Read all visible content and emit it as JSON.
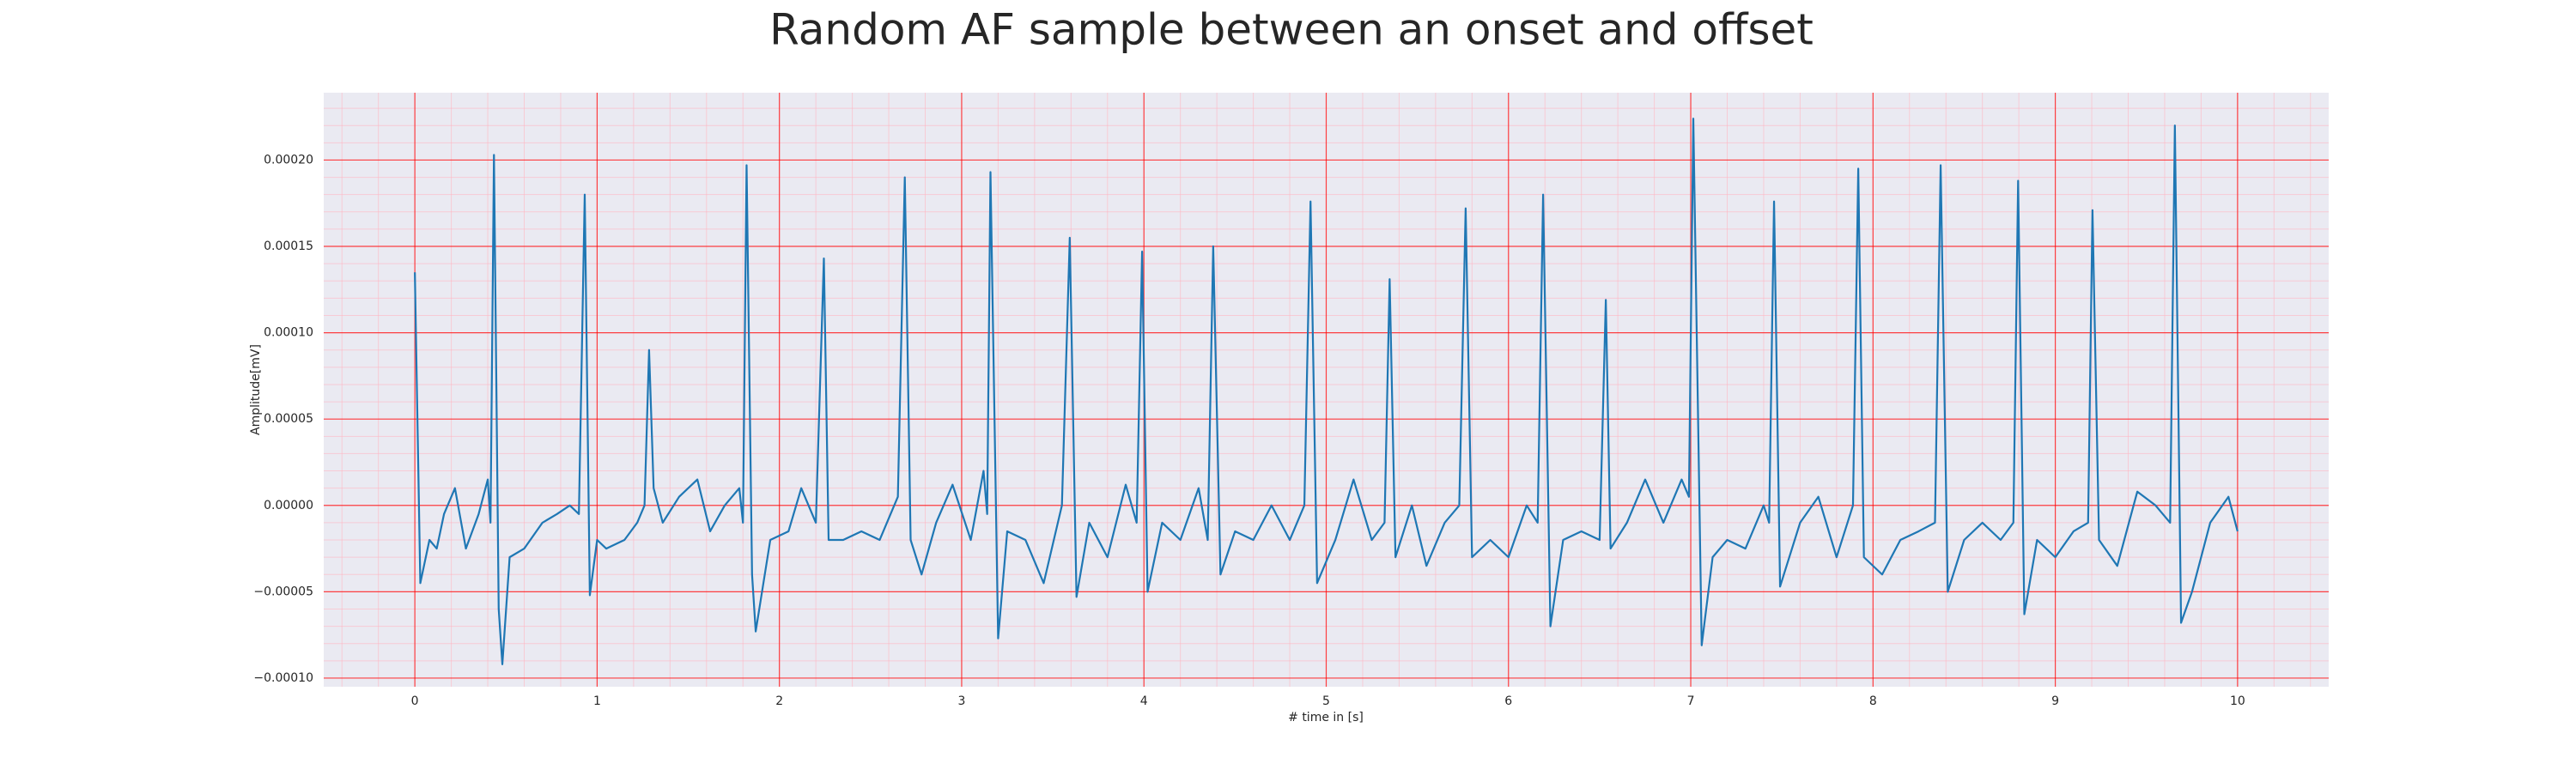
{
  "chart_data": {
    "type": "line",
    "title": "Random AF sample between an onset and offset",
    "x_label": "# time in [s]",
    "y_label": "Amplitude[mV]",
    "color": "#1f77b4",
    "background": "#eaeaf2",
    "grid": true,
    "grid_color": "#ff0000",
    "minor_grid": true,
    "minor_grid_color": "#ffb6c1",
    "xlim": [
      -0.5,
      10.5
    ],
    "ylim": [
      -0.000105,
      0.000239
    ],
    "xticks": [
      0,
      1,
      2,
      3,
      4,
      5,
      6,
      7,
      8,
      9,
      10
    ],
    "yticks": [
      {
        "value": -0.0001,
        "label": "−0.00010"
      },
      {
        "value": -5e-05,
        "label": "−0.00005"
      },
      {
        "value": 0,
        "label": "0.00000"
      },
      {
        "value": 5e-05,
        "label": "0.00005"
      },
      {
        "value": 0.0001,
        "label": "0.00010"
      },
      {
        "value": 0.00015,
        "label": "0.00015"
      },
      {
        "value": 0.0002,
        "label": "0.00020"
      }
    ],
    "x": [
      0,
      0.03,
      0.08,
      0.12,
      0.16,
      0.22,
      0.28,
      0.35,
      0.4,
      0.415,
      0.434,
      0.46,
      0.48,
      0.52,
      0.6,
      0.7,
      0.78,
      0.85,
      0.9,
      0.932,
      0.96,
      1.0,
      1.05,
      1.15,
      1.22,
      1.26,
      1.285,
      1.31,
      1.36,
      1.45,
      1.55,
      1.62,
      1.7,
      1.78,
      1.8,
      1.82,
      1.85,
      1.87,
      1.95,
      2.05,
      2.12,
      2.2,
      2.244,
      2.27,
      2.35,
      2.45,
      2.55,
      2.65,
      2.688,
      2.72,
      2.78,
      2.86,
      2.95,
      3.05,
      3.12,
      3.14,
      3.158,
      3.2,
      3.25,
      3.35,
      3.45,
      3.55,
      3.593,
      3.63,
      3.7,
      3.8,
      3.9,
      3.96,
      3.99,
      4.02,
      4.1,
      4.2,
      4.3,
      4.35,
      4.38,
      4.42,
      4.5,
      4.6,
      4.7,
      4.8,
      4.88,
      4.914,
      4.95,
      5.05,
      5.15,
      5.25,
      5.32,
      5.348,
      5.38,
      5.47,
      5.55,
      5.65,
      5.73,
      5.765,
      5.8,
      5.9,
      6.0,
      6.1,
      6.16,
      6.19,
      6.23,
      6.3,
      6.4,
      6.5,
      6.534,
      6.56,
      6.65,
      6.75,
      6.85,
      6.95,
      6.99,
      7.014,
      7.06,
      7.12,
      7.2,
      7.3,
      7.4,
      7.43,
      7.457,
      7.49,
      7.6,
      7.7,
      7.8,
      7.89,
      7.919,
      7.95,
      8.05,
      8.15,
      8.25,
      8.34,
      8.371,
      8.41,
      8.5,
      8.6,
      8.7,
      8.77,
      8.796,
      8.83,
      8.9,
      9.0,
      9.1,
      9.18,
      9.204,
      9.24,
      9.34,
      9.45,
      9.55,
      9.63,
      9.656,
      9.69,
      9.75,
      9.85,
      9.95,
      10.0
    ],
    "values": [
      0.000135,
      -4.5e-05,
      -2e-05,
      -2.5e-05,
      -5e-06,
      1e-05,
      -2.5e-05,
      -5e-06,
      1.5e-05,
      -1e-05,
      0.000203,
      -6e-05,
      -9.2e-05,
      -3e-05,
      -2.5e-05,
      -1e-05,
      -5e-06,
      0,
      -5e-06,
      0.00018,
      -5.2e-05,
      -2e-05,
      -2.5e-05,
      -2e-05,
      -1e-05,
      0,
      9e-05,
      1e-05,
      -1e-05,
      5e-06,
      1.5e-05,
      -1.5e-05,
      0,
      1e-05,
      -1e-05,
      0.000197,
      -4e-05,
      -7.3e-05,
      -2e-05,
      -1.5e-05,
      1e-05,
      -1e-05,
      0.000143,
      -2e-05,
      -2e-05,
      -1.5e-05,
      -2e-05,
      5e-06,
      0.00019,
      -2e-05,
      -4e-05,
      -1e-05,
      1.2e-05,
      -2e-05,
      2e-05,
      -5e-06,
      0.000193,
      -7.7e-05,
      -1.5e-05,
      -2e-05,
      -4.5e-05,
      0,
      0.000155,
      -5.3e-05,
      -1e-05,
      -3e-05,
      1.2e-05,
      -1e-05,
      0.000147,
      -5e-05,
      -1e-05,
      -2e-05,
      1e-05,
      -2e-05,
      0.00015,
      -4e-05,
      -1.5e-05,
      -2e-05,
      0,
      -2e-05,
      0,
      0.000176,
      -4.5e-05,
      -2e-05,
      1.5e-05,
      -2e-05,
      -1e-05,
      0.000131,
      -3e-05,
      0,
      -3.5e-05,
      -1e-05,
      0,
      0.000172,
      -3e-05,
      -2e-05,
      -3e-05,
      0,
      -1e-05,
      0.00018,
      -7e-05,
      -2e-05,
      -1.5e-05,
      -2e-05,
      0.000119,
      -2.5e-05,
      -1e-05,
      1.5e-05,
      -1e-05,
      1.5e-05,
      5e-06,
      0.000224,
      -8.1e-05,
      -3e-05,
      -2e-05,
      -2.5e-05,
      0,
      -1e-05,
      0.000176,
      -4.7e-05,
      -1e-05,
      5e-06,
      -3e-05,
      0,
      0.000195,
      -3e-05,
      -4e-05,
      -2e-05,
      -1.5e-05,
      -1e-05,
      0.000197,
      -5e-05,
      -2e-05,
      -1e-05,
      -2e-05,
      -1e-05,
      0.000188,
      -6.3e-05,
      -2e-05,
      -3e-05,
      -1.5e-05,
      -1e-05,
      0.000171,
      -2e-05,
      -3.5e-05,
      8e-06,
      0,
      -1e-05,
      0.00022,
      -6.8e-05,
      -5e-05,
      -1e-05,
      5e-06,
      -1.5e-05
    ]
  }
}
